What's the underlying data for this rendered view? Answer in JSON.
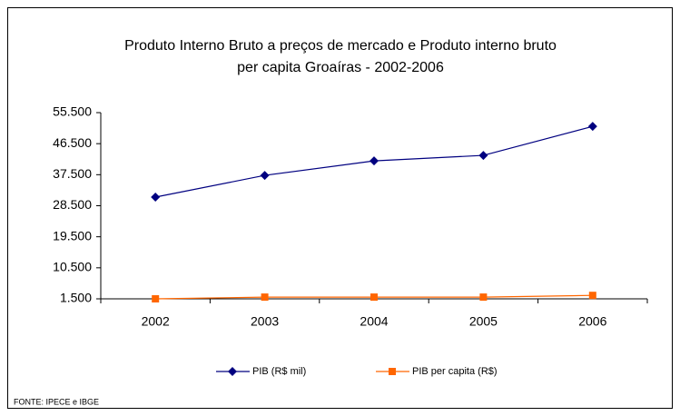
{
  "chart_data": {
    "type": "line",
    "title": [
      "Produto Interno Bruto a preços de mercado  e   Produto interno bruto",
      "per capita Groaíras - 2002-2006"
    ],
    "categories": [
      "2002",
      "2003",
      "2004",
      "2005",
      "2006"
    ],
    "series": [
      {
        "name": "PIB (R$ mil)",
        "color": "#000080",
        "marker": "diamond",
        "values": [
          31000,
          37300,
          41500,
          43100,
          51500
        ]
      },
      {
        "name": "PIB per capita (R$)",
        "color": "#ff6600",
        "marker": "square",
        "values": [
          1500,
          2000,
          2000,
          2000,
          2500
        ]
      }
    ],
    "ylim": [
      1500,
      55500
    ],
    "yticks": [
      {
        "value": 1500,
        "label": "1.500"
      },
      {
        "value": 10500,
        "label": "10.500"
      },
      {
        "value": 19500,
        "label": "19.500"
      },
      {
        "value": 28500,
        "label": "28.500"
      },
      {
        "value": 37500,
        "label": "37.500"
      },
      {
        "value": 46500,
        "label": "46.500"
      },
      {
        "value": 55500,
        "label": "55.500"
      }
    ],
    "legend": "bottom",
    "source": "FONTE: IPECE e IBGE"
  }
}
